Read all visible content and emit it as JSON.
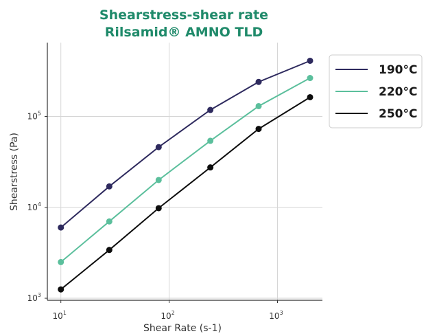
{
  "chart_data": {
    "type": "line",
    "title_line1": "Shearstress-shear rate",
    "title_line2": "Rilsamid® AMNO TLD",
    "title_color": "#1f8a6a",
    "xlabel": "Shear Rate (s-1)",
    "ylabel": "Shearstress (Pa)",
    "x_scale": "log",
    "y_scale": "log",
    "xlim": [
      7.5,
      2600
    ],
    "ylim": [
      950,
      650000
    ],
    "grid": true,
    "legend_position": "right",
    "x_ticks": [
      {
        "value": 10,
        "base": "10",
        "exp": "1"
      },
      {
        "value": 100,
        "base": "10",
        "exp": "2"
      },
      {
        "value": 1000,
        "base": "10",
        "exp": "3"
      }
    ],
    "y_ticks": [
      {
        "value": 1000,
        "base": "10",
        "exp": "3"
      },
      {
        "value": 10000,
        "base": "10",
        "exp": "4"
      },
      {
        "value": 100000,
        "base": "10",
        "exp": "5"
      }
    ],
    "series": [
      {
        "name": "190°C",
        "color": "#2e2a5e",
        "x": [
          10,
          28,
          80,
          240,
          670,
          2000
        ],
        "y": [
          6000,
          17000,
          46000,
          118000,
          240000,
          410000
        ]
      },
      {
        "name": "220°C",
        "color": "#5bbf9c",
        "x": [
          10,
          28,
          80,
          240,
          670,
          2000
        ],
        "y": [
          2500,
          7000,
          20000,
          54000,
          130000,
          265000
        ]
      },
      {
        "name": "250°C",
        "color": "#0d0d0d",
        "x": [
          10,
          28,
          80,
          240,
          670,
          2000
        ],
        "y": [
          1250,
          3400,
          9800,
          27500,
          73000,
          163000
        ]
      }
    ]
  }
}
